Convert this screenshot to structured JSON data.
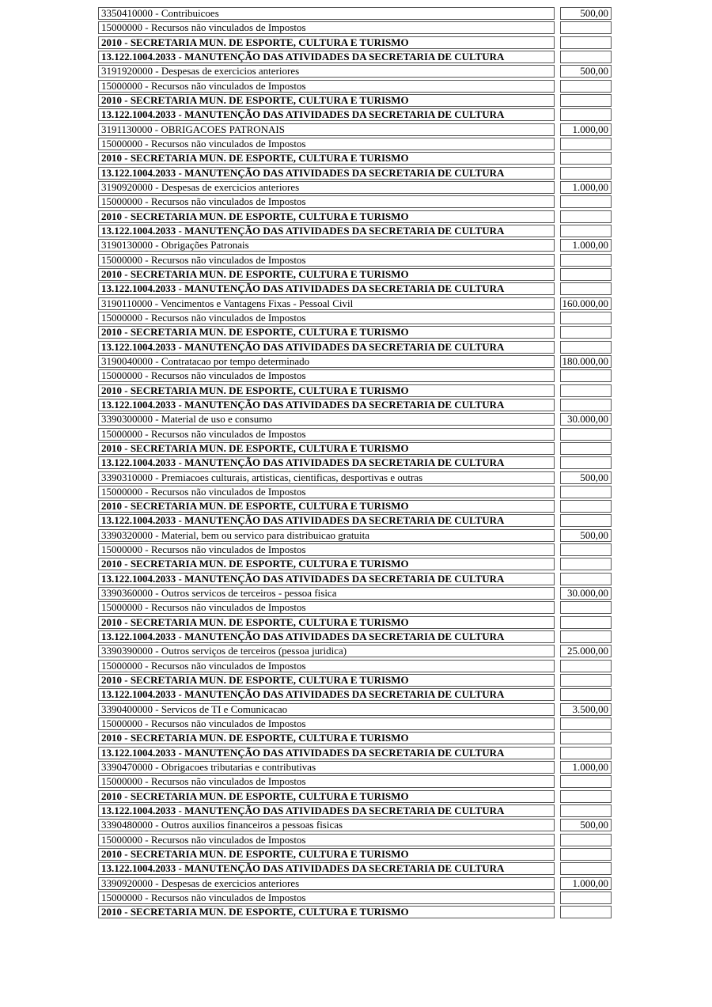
{
  "page": {
    "background_color": "#ffffff",
    "text_color": "#000000",
    "border_color": "#555555"
  },
  "table": {
    "columns": [
      "description",
      "value"
    ],
    "rows": [
      {
        "text": "3350410000 - Contribuicoes",
        "value": "500,00",
        "bold": false
      },
      {
        "text": "15000000 - Recursos não vinculados de Impostos",
        "value": "",
        "bold": false
      },
      {
        "text": "2010 - SECRETARIA MUN. DE ESPORTE, CULTURA E TURISMO",
        "value": "",
        "bold": true
      },
      {
        "text": "13.122.1004.2033 - MANUTENÇÃO DAS ATIVIDADES DA SECRETARIA DE CULTURA",
        "value": "",
        "bold": true
      },
      {
        "text": "3191920000 - Despesas de exercicios anteriores",
        "value": "500,00",
        "bold": false
      },
      {
        "text": "15000000 - Recursos não vinculados de Impostos",
        "value": "",
        "bold": false
      },
      {
        "text": "2010 - SECRETARIA MUN. DE ESPORTE, CULTURA E TURISMO",
        "value": "",
        "bold": true
      },
      {
        "text": "13.122.1004.2033 - MANUTENÇÃO DAS ATIVIDADES DA SECRETARIA DE CULTURA",
        "value": "",
        "bold": true
      },
      {
        "text": "3191130000 - OBRIGACOES PATRONAIS",
        "value": "1.000,00",
        "bold": false
      },
      {
        "text": "15000000 - Recursos não vinculados de Impostos",
        "value": "",
        "bold": false
      },
      {
        "text": "2010 - SECRETARIA MUN. DE ESPORTE, CULTURA E TURISMO",
        "value": "",
        "bold": true
      },
      {
        "text": "13.122.1004.2033 - MANUTENÇÃO DAS ATIVIDADES DA SECRETARIA DE CULTURA",
        "value": "",
        "bold": true
      },
      {
        "text": "3190920000 - Despesas de exercicios anteriores",
        "value": "1.000,00",
        "bold": false
      },
      {
        "text": "15000000 - Recursos não vinculados de Impostos",
        "value": "",
        "bold": false
      },
      {
        "text": "2010 - SECRETARIA MUN. DE ESPORTE, CULTURA E TURISMO",
        "value": "",
        "bold": true
      },
      {
        "text": "13.122.1004.2033 - MANUTENÇÃO DAS ATIVIDADES DA SECRETARIA DE CULTURA",
        "value": "",
        "bold": true
      },
      {
        "text": "3190130000 - Obrigações Patronais",
        "value": "1.000,00",
        "bold": false
      },
      {
        "text": "15000000 - Recursos não vinculados de Impostos",
        "value": "",
        "bold": false
      },
      {
        "text": "2010 - SECRETARIA MUN. DE ESPORTE, CULTURA E TURISMO",
        "value": "",
        "bold": true
      },
      {
        "text": "13.122.1004.2033 - MANUTENÇÃO DAS ATIVIDADES DA SECRETARIA DE CULTURA",
        "value": "",
        "bold": true
      },
      {
        "text": "3190110000 - Vencimentos e Vantagens Fixas - Pessoal Civil",
        "value": "160.000,00",
        "bold": false
      },
      {
        "text": "15000000 - Recursos não vinculados de Impostos",
        "value": "",
        "bold": false
      },
      {
        "text": "2010 - SECRETARIA MUN. DE ESPORTE, CULTURA E TURISMO",
        "value": "",
        "bold": true
      },
      {
        "text": "13.122.1004.2033 - MANUTENÇÃO DAS ATIVIDADES DA SECRETARIA DE CULTURA",
        "value": "",
        "bold": true
      },
      {
        "text": "3190040000 - Contratacao por tempo determinado",
        "value": "180.000,00",
        "bold": false
      },
      {
        "text": "15000000 - Recursos não vinculados de Impostos",
        "value": "",
        "bold": false
      },
      {
        "text": "2010 - SECRETARIA MUN. DE ESPORTE, CULTURA E TURISMO",
        "value": "",
        "bold": true
      },
      {
        "text": "13.122.1004.2033 - MANUTENÇÃO DAS ATIVIDADES DA SECRETARIA DE CULTURA",
        "value": "",
        "bold": true
      },
      {
        "text": "3390300000 - Material de uso e consumo",
        "value": "30.000,00",
        "bold": false
      },
      {
        "text": "15000000 - Recursos não vinculados de Impostos",
        "value": "",
        "bold": false
      },
      {
        "text": "2010 - SECRETARIA MUN. DE ESPORTE, CULTURA E TURISMO",
        "value": "",
        "bold": true
      },
      {
        "text": "13.122.1004.2033 - MANUTENÇÃO DAS ATIVIDADES DA SECRETARIA DE CULTURA",
        "value": "",
        "bold": true
      },
      {
        "text": "3390310000 - Premiacoes culturais, artisticas, cientificas, desportivas e outras",
        "value": "500,00",
        "bold": false
      },
      {
        "text": "15000000 - Recursos não vinculados de Impostos",
        "value": "",
        "bold": false
      },
      {
        "text": "2010 - SECRETARIA MUN. DE ESPORTE, CULTURA E TURISMO",
        "value": "",
        "bold": true
      },
      {
        "text": "13.122.1004.2033 - MANUTENÇÃO DAS ATIVIDADES DA SECRETARIA DE CULTURA",
        "value": "",
        "bold": true
      },
      {
        "text": "3390320000 - Material, bem ou servico para distribuicao gratuita",
        "value": "500,00",
        "bold": false
      },
      {
        "text": "15000000 - Recursos não vinculados de Impostos",
        "value": "",
        "bold": false
      },
      {
        "text": "2010 - SECRETARIA MUN. DE ESPORTE, CULTURA E TURISMO",
        "value": "",
        "bold": true
      },
      {
        "text": "13.122.1004.2033 - MANUTENÇÃO DAS ATIVIDADES DA SECRETARIA DE CULTURA",
        "value": "",
        "bold": true
      },
      {
        "text": "3390360000 - Outros servicos de terceiros - pessoa fisica",
        "value": "30.000,00",
        "bold": false
      },
      {
        "text": "15000000 - Recursos não vinculados de Impostos",
        "value": "",
        "bold": false
      },
      {
        "text": "2010 - SECRETARIA MUN. DE ESPORTE, CULTURA E TURISMO",
        "value": "",
        "bold": true
      },
      {
        "text": "13.122.1004.2033 - MANUTENÇÃO DAS ATIVIDADES DA SECRETARIA DE CULTURA",
        "value": "",
        "bold": true
      },
      {
        "text": "3390390000 - Outros serviços de terceiros (pessoa juridica)",
        "value": "25.000,00",
        "bold": false
      },
      {
        "text": "15000000 - Recursos não vinculados de Impostos",
        "value": "",
        "bold": false
      },
      {
        "text": "2010 - SECRETARIA MUN. DE ESPORTE, CULTURA E TURISMO",
        "value": "",
        "bold": true
      },
      {
        "text": "13.122.1004.2033 - MANUTENÇÃO DAS ATIVIDADES DA SECRETARIA DE CULTURA",
        "value": "",
        "bold": true
      },
      {
        "text": "3390400000 - Servicos de TI e Comunicacao",
        "value": "3.500,00",
        "bold": false
      },
      {
        "text": "15000000 - Recursos não vinculados de Impostos",
        "value": "",
        "bold": false
      },
      {
        "text": "2010 - SECRETARIA MUN. DE ESPORTE, CULTURA E TURISMO",
        "value": "",
        "bold": true
      },
      {
        "text": "13.122.1004.2033 - MANUTENÇÃO DAS ATIVIDADES DA SECRETARIA DE CULTURA",
        "value": "",
        "bold": true
      },
      {
        "text": "3390470000 - Obrigacoes tributarias e contributivas",
        "value": "1.000,00",
        "bold": false
      },
      {
        "text": "15000000 - Recursos não vinculados de Impostos",
        "value": "",
        "bold": false
      },
      {
        "text": "2010 - SECRETARIA MUN. DE ESPORTE, CULTURA E TURISMO",
        "value": "",
        "bold": true
      },
      {
        "text": "13.122.1004.2033 - MANUTENÇÃO DAS ATIVIDADES DA SECRETARIA DE CULTURA",
        "value": "",
        "bold": true
      },
      {
        "text": "3390480000 - Outros auxilios financeiros a pessoas fisicas",
        "value": "500,00",
        "bold": false
      },
      {
        "text": "15000000 - Recursos não vinculados de Impostos",
        "value": "",
        "bold": false
      },
      {
        "text": "2010 - SECRETARIA MUN. DE ESPORTE, CULTURA E TURISMO",
        "value": "",
        "bold": true
      },
      {
        "text": "13.122.1004.2033 - MANUTENÇÃO DAS ATIVIDADES DA SECRETARIA DE CULTURA",
        "value": "",
        "bold": true
      },
      {
        "text": "3390920000 - Despesas de exercicios anteriores",
        "value": "1.000,00",
        "bold": false
      },
      {
        "text": "15000000 - Recursos não vinculados de Impostos",
        "value": "",
        "bold": false
      },
      {
        "text": "2010 - SECRETARIA MUN. DE ESPORTE, CULTURA E TURISMO",
        "value": "",
        "bold": true
      }
    ]
  }
}
